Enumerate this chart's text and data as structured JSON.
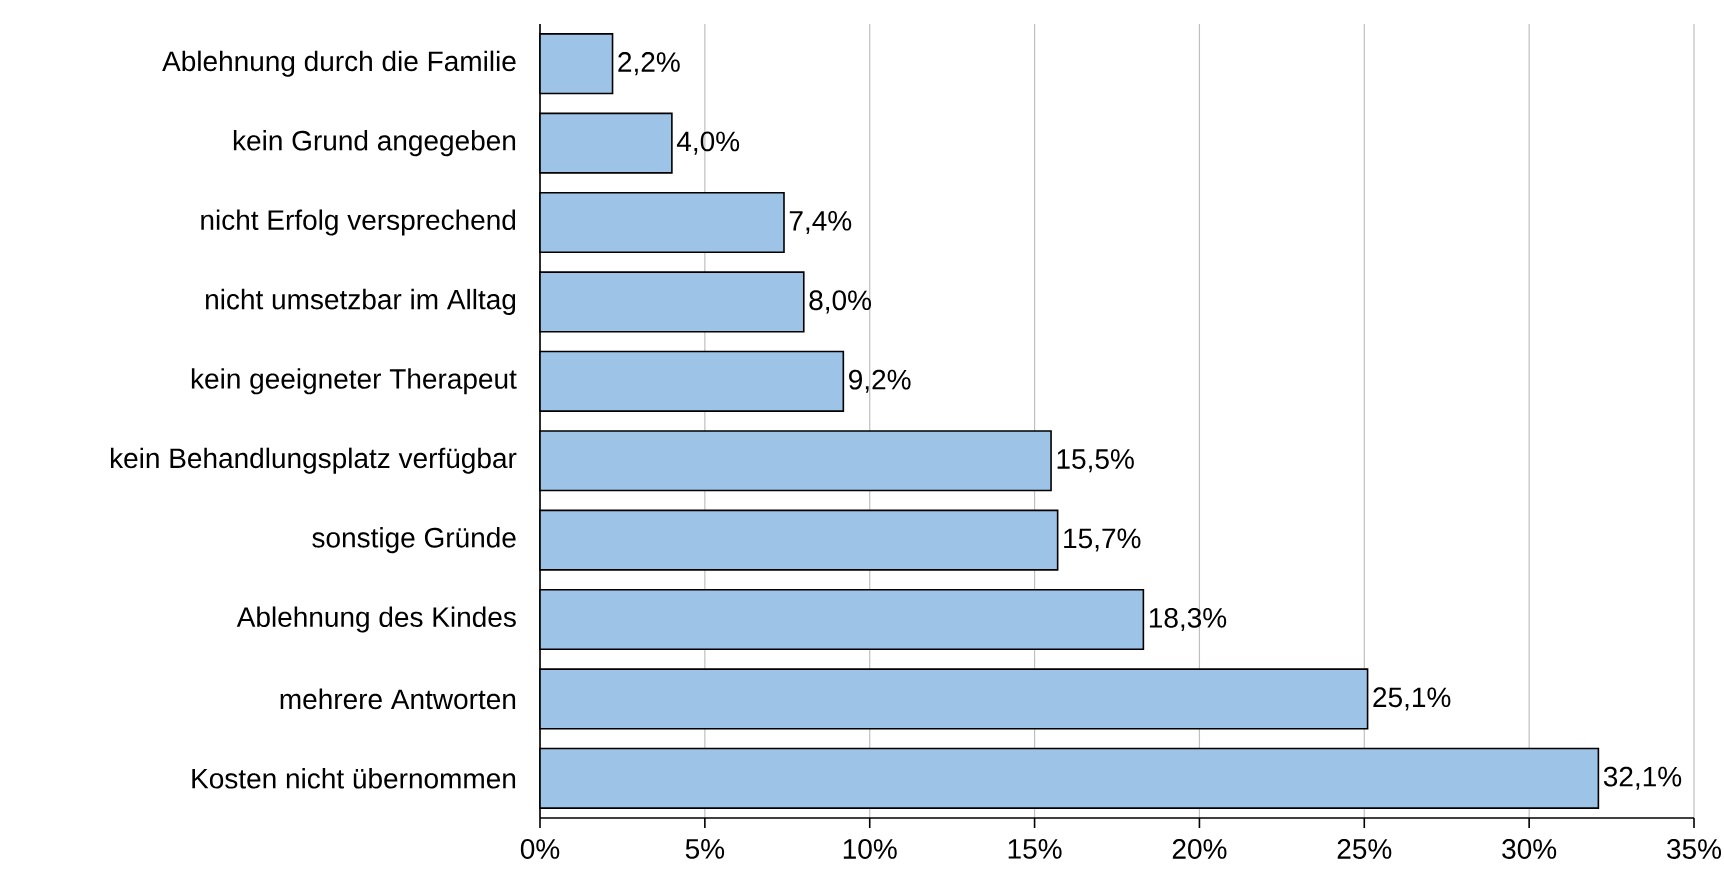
{
  "chart_data": {
    "type": "bar",
    "orientation": "horizontal",
    "categories": [
      "Ablehnung durch die Familie",
      "kein Grund angegeben",
      "nicht Erfolg versprechend",
      "nicht umsetzbar im Alltag",
      "kein geeigneter Therapeut",
      "kein Behandlungsplatz verfügbar",
      "sonstige Gründe",
      "Ablehnung des Kindes",
      "mehrere Antworten",
      "Kosten nicht übernommen"
    ],
    "values": [
      2.2,
      4.0,
      7.4,
      8.0,
      9.2,
      15.5,
      15.7,
      18.3,
      25.1,
      32.1
    ],
    "value_labels": [
      "2,2%",
      "4,0%",
      "7,4%",
      "8,0%",
      "9,2%",
      "15,5%",
      "15,7%",
      "18,3%",
      "25,1%",
      "32,1%"
    ],
    "color": "#9dc3e6",
    "xlim": [
      0,
      35
    ],
    "xticks": [
      {
        "value": 0,
        "label": "0%"
      },
      {
        "value": 5,
        "label": "5%"
      },
      {
        "value": 10,
        "label": "10%"
      },
      {
        "value": 15,
        "label": "15%"
      },
      {
        "value": 20,
        "label": "20%"
      },
      {
        "value": 25,
        "label": "25%"
      },
      {
        "value": 30,
        "label": "30%"
      },
      {
        "value": 35,
        "label": "35%"
      }
    ],
    "grid": "x"
  }
}
